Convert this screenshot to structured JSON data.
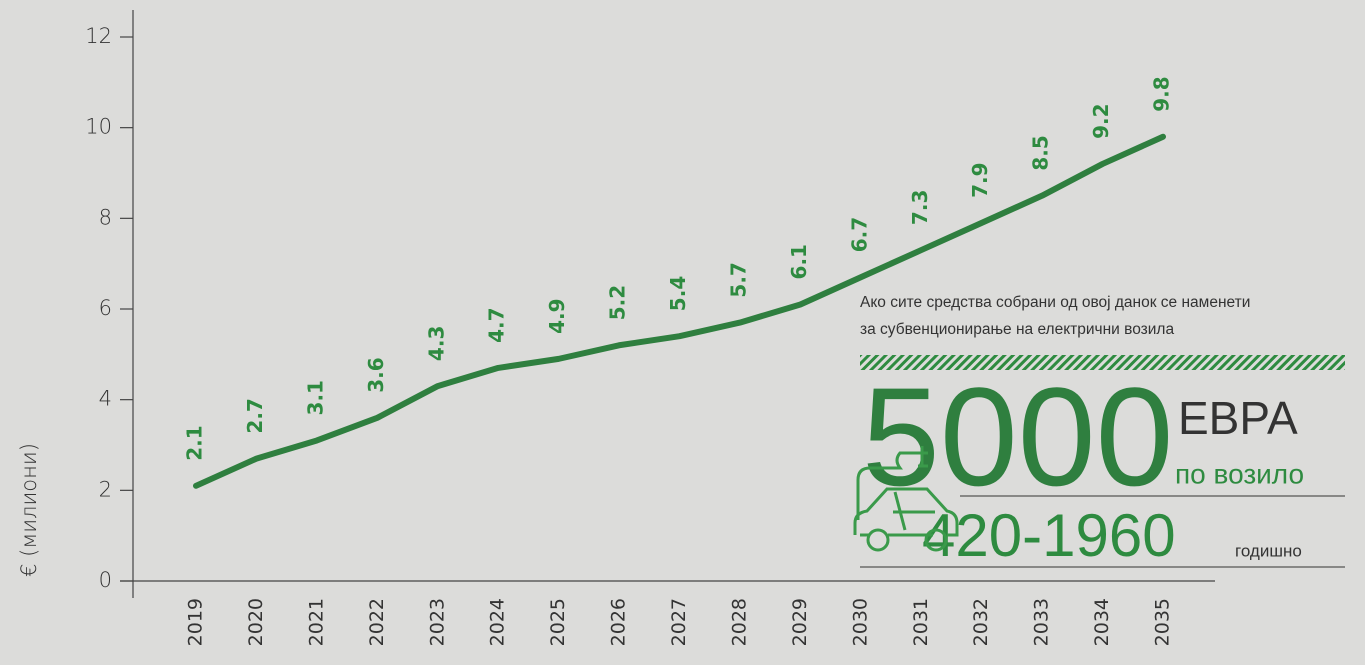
{
  "chart_data": {
    "type": "line",
    "y_label": "€ (милиони)",
    "categories": [
      "2019",
      "2020",
      "2021",
      "2022",
      "2023",
      "2024",
      "2025",
      "2026",
      "2027",
      "2028",
      "2029",
      "2030",
      "2031",
      "2032",
      "2033",
      "2034",
      "2035"
    ],
    "series": [
      {
        "color": "#2f7f3f",
        "values": [
          2.1,
          2.7,
          3.1,
          3.6,
          4.3,
          4.7,
          4.9,
          5.2,
          5.4,
          5.7,
          6.1,
          6.7,
          7.3,
          7.9,
          8.5,
          9.2,
          9.8
        ]
      }
    ],
    "ylim": [
      0,
      12
    ],
    "yticks": [
      0,
      2,
      4,
      6,
      8,
      10,
      12
    ],
    "annotation": {
      "text": [
        "Ако сите средства собрани од овој данок се наменети",
        "за субвенционирање на електрични возила"
      ],
      "amount": "5000",
      "currency": "ЕВРА",
      "per": "по возило",
      "range": "420-1960",
      "range_unit": "годишно"
    }
  }
}
